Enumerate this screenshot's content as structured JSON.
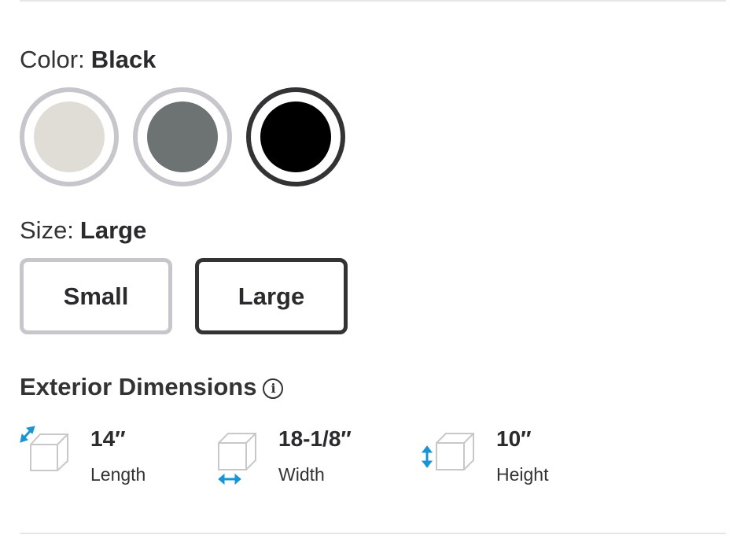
{
  "color": {
    "label": "Color:",
    "selected": "Black",
    "swatches": [
      {
        "name": "Sand",
        "hex": "#e0ddd6",
        "selected": false
      },
      {
        "name": "Gray",
        "hex": "#6c7372",
        "selected": false
      },
      {
        "name": "Black",
        "hex": "#000000",
        "selected": true
      }
    ]
  },
  "size": {
    "label": "Size:",
    "selected": "Large",
    "options": [
      {
        "label": "Small",
        "selected": false
      },
      {
        "label": "Large",
        "selected": true
      }
    ]
  },
  "dimensions": {
    "title": "Exterior Dimensions",
    "info_icon": "info-icon",
    "info_glyph": "i",
    "accent": "#1a95d4",
    "items": [
      {
        "value": "14″",
        "label": "Length",
        "icon": "cube-length-icon"
      },
      {
        "value": "18-1/8″",
        "label": "Width",
        "icon": "cube-width-icon"
      },
      {
        "value": "10″",
        "label": "Height",
        "icon": "cube-height-icon"
      }
    ]
  }
}
